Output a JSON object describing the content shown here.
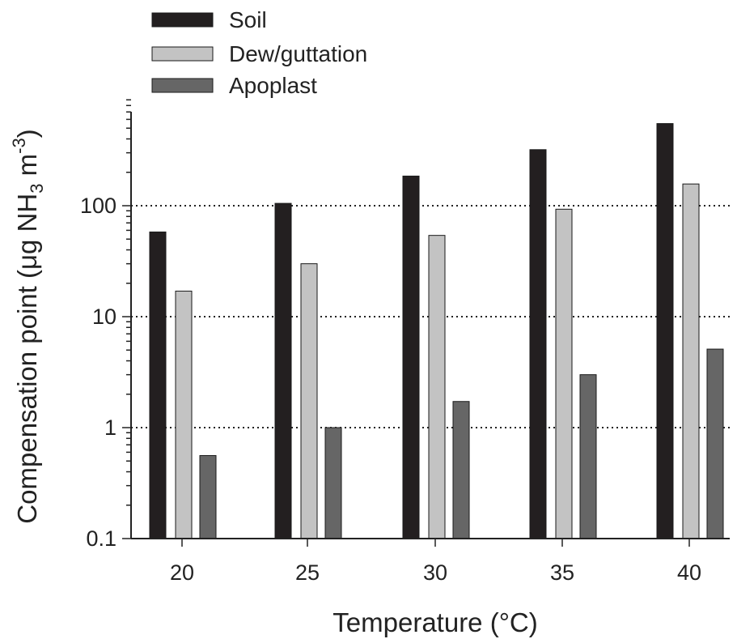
{
  "chart_data": {
    "type": "bar",
    "xlabel": "Temperature (°C)",
    "ylabel_parts": {
      "before": "Compensation point (μg NH",
      "sub": "3",
      "middle": " m",
      "sup": "-3",
      "after": ")"
    },
    "categories": [
      "20",
      "25",
      "30",
      "35",
      "40"
    ],
    "yscale": "log",
    "ylim": [
      0.1,
      900
    ],
    "yticks": [
      0.1,
      1,
      10,
      100
    ],
    "ytick_labels": [
      "0.1",
      "1",
      "10",
      "100"
    ],
    "grid": {
      "y_dotted_at": [
        1,
        10,
        100
      ]
    },
    "legend": {
      "placement": "top-left"
    },
    "series": [
      {
        "name": "Soil",
        "color": "#231f20",
        "values": [
          58,
          105,
          185,
          320,
          550
        ]
      },
      {
        "name": "Dew/guttation",
        "color": "#c3c3c3",
        "values": [
          17,
          30,
          54,
          93,
          157
        ]
      },
      {
        "name": "Apoplast",
        "color": "#666666",
        "values": [
          0.56,
          1.0,
          1.72,
          3.0,
          5.1
        ]
      }
    ]
  }
}
